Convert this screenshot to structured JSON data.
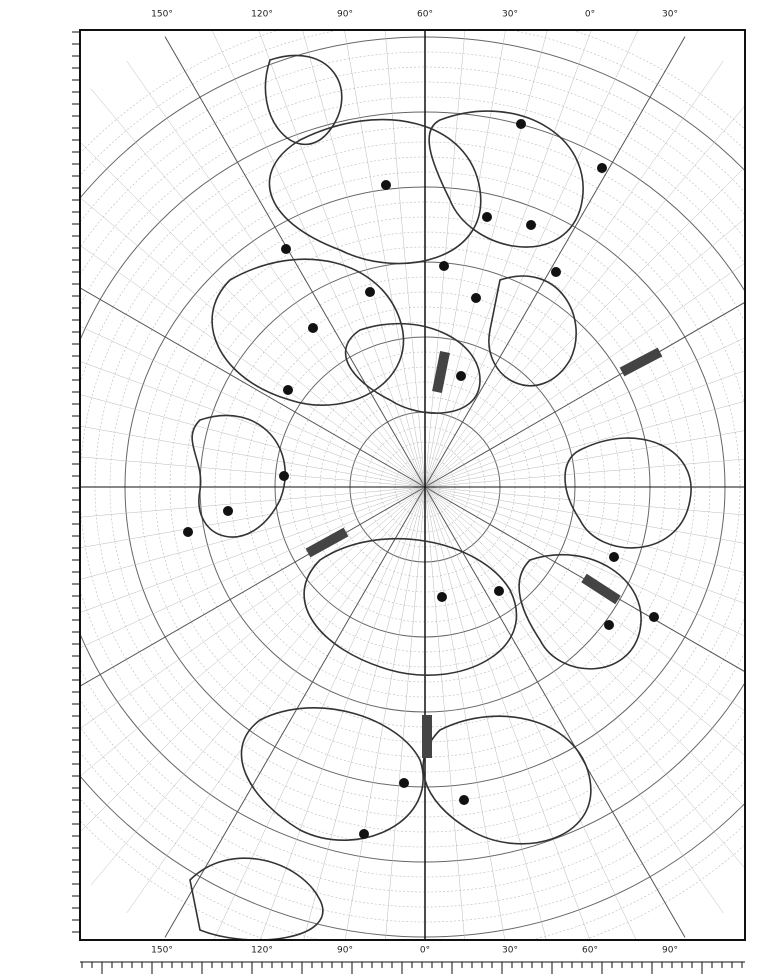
{
  "map": {
    "top_labels": [
      "150°",
      "120°",
      "90°",
      "60°",
      "30°",
      "0°",
      "30°"
    ],
    "bottom_labels": [
      "150°",
      "120°",
      "90°",
      "0°",
      "30°",
      "60°",
      "90°"
    ]
  }
}
